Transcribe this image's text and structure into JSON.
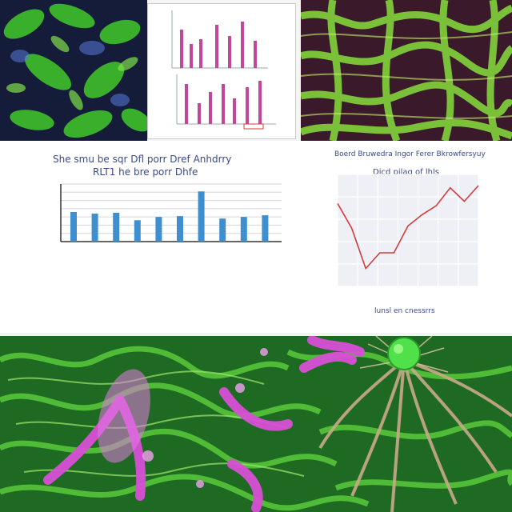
{
  "colors": {
    "leaf_green": "#3fbf2a",
    "dark_navy": "#121a3a",
    "bar_blue": "#3f8fcf",
    "line_red": "#d33b3b",
    "magenta": "#d84fd6",
    "label_blue": "#3a4a88"
  },
  "panels": {
    "bar_chart_caption": {
      "title_line1": "She smu be sqr Dfl porr Dref Anhdrry",
      "title_line2": "RLT1 he bre porr Dhfe"
    },
    "line_chart_caption": {
      "title_line1": "Boerd Bruwedra Ingor Ferer Bkrowfersyuy",
      "title_line2": "Dicd pilag of lhls",
      "xlabel": "lunsl en cnessrrs"
    }
  },
  "chart_data": [
    {
      "type": "bar",
      "title": "",
      "categories": [
        "",
        "",
        "",
        "",
        "",
        "",
        "",
        "",
        "",
        ""
      ],
      "values": [
        36,
        34,
        35,
        26,
        30,
        31,
        61,
        28,
        30,
        32
      ],
      "ylim": [
        0,
        70
      ],
      "grid": true,
      "legend": "none"
    },
    {
      "type": "line",
      "title": "",
      "x": [
        0,
        1,
        2,
        3,
        4,
        5,
        6,
        7,
        8,
        9,
        10
      ],
      "values": [
        74,
        52,
        16,
        30,
        30,
        54,
        64,
        72,
        88,
        76,
        90
      ],
      "ylim": [
        0,
        100
      ],
      "grid": true,
      "legend": "none"
    }
  ]
}
